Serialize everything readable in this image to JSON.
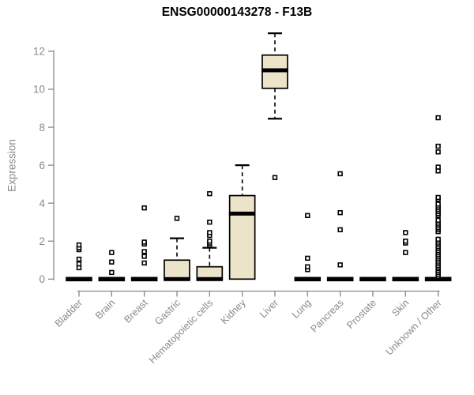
{
  "title": "ENSG00000143278 - F13B",
  "colors": {
    "background": "#ffffff",
    "box_fill": "#ebe4c8",
    "box_stroke": "#000000",
    "median": "#000000",
    "whisker": "#000000",
    "outlier_fill": "#ffffff",
    "axis": "#888888",
    "tick_text": "#8a8a8a",
    "title_text": "#000000"
  },
  "chart_data": {
    "type": "boxplot",
    "title": "ENSG00000143278 - F13B",
    "xlabel": "",
    "ylabel": "Expression",
    "ylim": [
      0,
      12
    ],
    "yticks": [
      0,
      2,
      4,
      6,
      8,
      10,
      12
    ],
    "grid": false,
    "legend": false,
    "categories": [
      "Bladder",
      "Brain",
      "Breast",
      "Gastric",
      "Hematopoietic cells",
      "Kidney",
      "Liver",
      "Lung",
      "Pancreas",
      "Prostate",
      "Skin",
      "Unknown / Other"
    ],
    "series": [
      {
        "name": "Bladder",
        "q1": 0,
        "median": 0,
        "q3": 0,
        "whisker_low": 0,
        "whisker_high": 0,
        "outliers": [
          0.6,
          0.8,
          1.05,
          1.55,
          1.65,
          1.8
        ]
      },
      {
        "name": "Brain",
        "q1": 0,
        "median": 0,
        "q3": 0,
        "whisker_low": 0,
        "whisker_high": 0,
        "outliers": [
          0.35,
          0.9,
          1.4
        ]
      },
      {
        "name": "Breast",
        "q1": 0,
        "median": 0,
        "q3": 0,
        "whisker_low": 0,
        "whisker_high": 0,
        "outliers": [
          0.85,
          1.2,
          1.45,
          1.85,
          1.95,
          3.75
        ]
      },
      {
        "name": "Gastric",
        "q1": 0,
        "median": 0,
        "q3": 1.0,
        "whisker_low": 0,
        "whisker_high": 2.15,
        "outliers": [
          3.2
        ]
      },
      {
        "name": "Hematopoietic cells",
        "q1": 0,
        "median": 0,
        "q3": 0.65,
        "whisker_low": 0,
        "whisker_high": 1.65,
        "outliers": [
          1.8,
          1.9,
          2.0,
          2.3,
          2.45,
          3.0,
          4.5
        ]
      },
      {
        "name": "Kidney",
        "q1": 0,
        "median": 3.45,
        "q3": 4.4,
        "whisker_low": 0,
        "whisker_high": 6.0,
        "outliers": []
      },
      {
        "name": "Liver",
        "q1": 10.05,
        "median": 11.0,
        "q3": 11.8,
        "whisker_low": 8.45,
        "whisker_high": 12.95,
        "outliers": [
          5.35
        ]
      },
      {
        "name": "Lung",
        "q1": 0,
        "median": 0,
        "q3": 0,
        "whisker_low": 0,
        "whisker_high": 0,
        "outliers": [
          0.5,
          0.65,
          1.1,
          3.35
        ]
      },
      {
        "name": "Pancreas",
        "q1": 0,
        "median": 0,
        "q3": 0,
        "whisker_low": 0,
        "whisker_high": 0,
        "outliers": [
          0.75,
          2.6,
          3.5,
          5.55
        ]
      },
      {
        "name": "Prostate",
        "q1": 0,
        "median": 0,
        "q3": 0,
        "whisker_low": 0,
        "whisker_high": 0,
        "outliers": []
      },
      {
        "name": "Skin",
        "q1": 0,
        "median": 0,
        "q3": 0,
        "whisker_low": 0,
        "whisker_high": 0,
        "outliers": [
          1.4,
          1.9,
          2.0,
          2.45
        ]
      },
      {
        "name": "Unknown / Other",
        "q1": 0,
        "median": 0,
        "q3": 0,
        "whisker_low": 0,
        "whisker_high": 0,
        "outliers": [
          0.15,
          0.25,
          0.35,
          0.45,
          0.55,
          0.6,
          0.7,
          0.8,
          0.9,
          1.0,
          1.1,
          1.2,
          1.3,
          1.4,
          1.5,
          1.6,
          1.7,
          1.8,
          1.9,
          2.0,
          2.1,
          2.5,
          2.6,
          2.7,
          2.8,
          2.9,
          3.0,
          3.1,
          3.35,
          3.45,
          3.55,
          3.65,
          3.75,
          3.85,
          3.95,
          4.2,
          4.3,
          5.7,
          5.9,
          6.7,
          7.0,
          8.5
        ]
      }
    ]
  }
}
